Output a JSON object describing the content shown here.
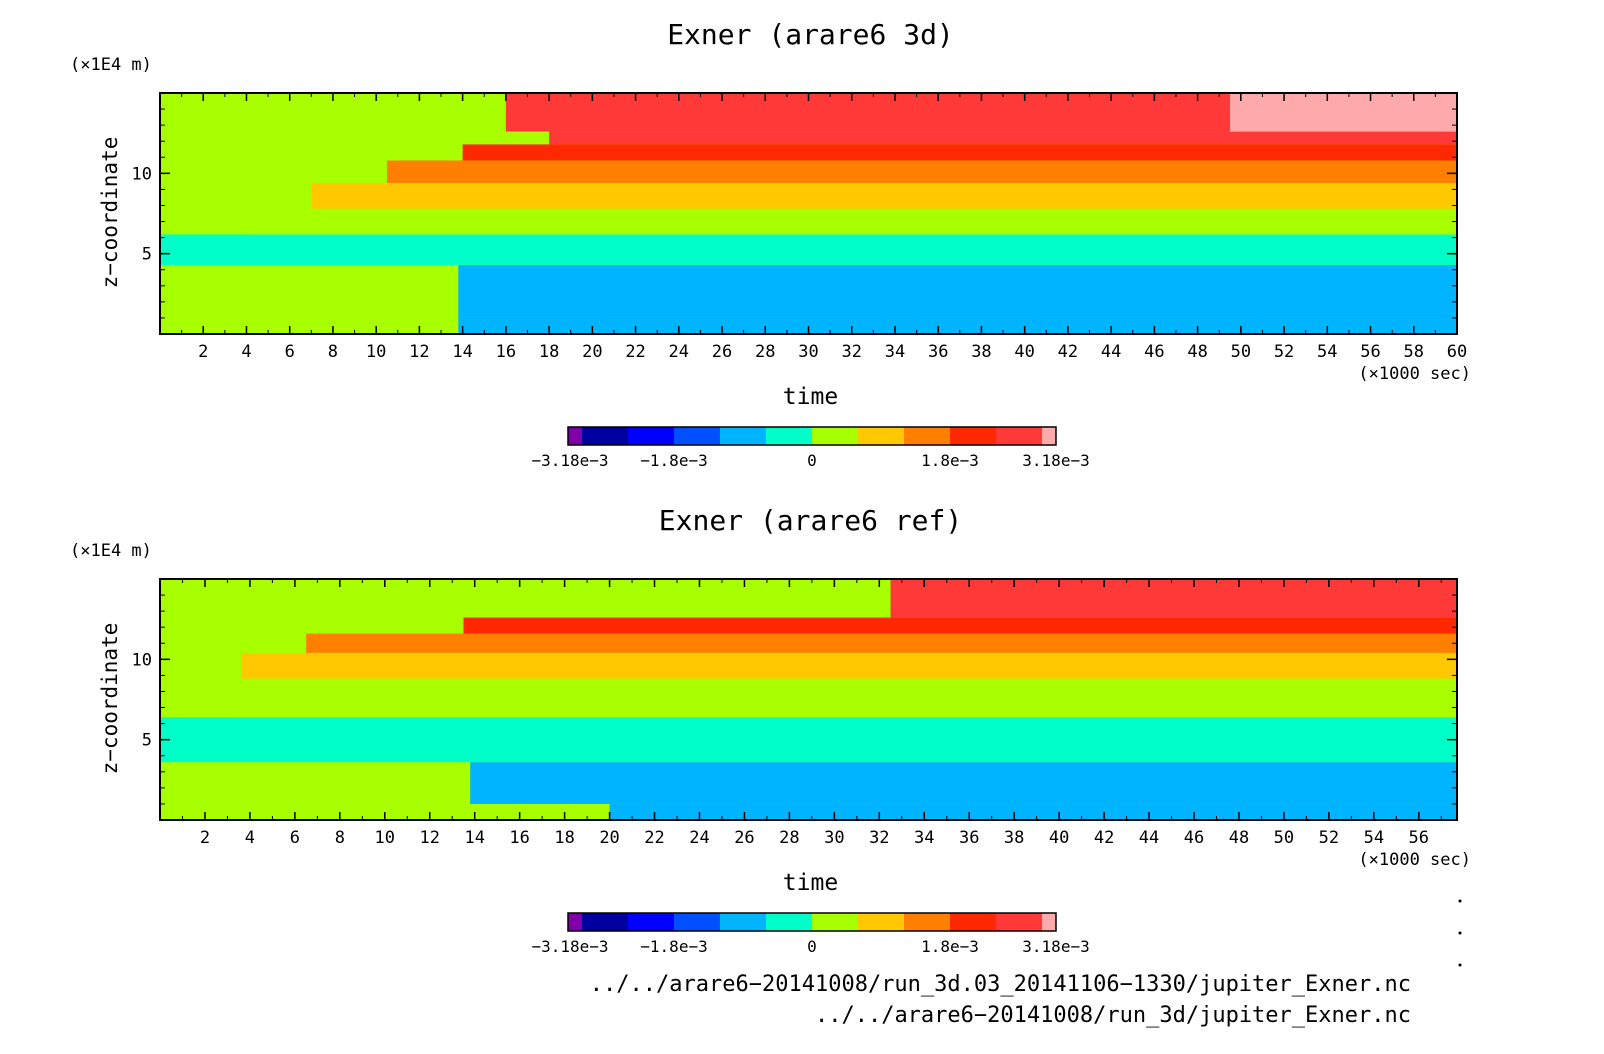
{
  "chart_data": [
    {
      "type": "heatmap",
      "title": "Exner (arare6 3d)",
      "xlabel": "time",
      "xunit": "(×1000 sec)",
      "ylabel": "z−coordinate",
      "yunit": "(×1E4 m)",
      "xlim": [
        0,
        60
      ],
      "ylim": [
        0,
        15
      ],
      "x_ticks": [
        2,
        4,
        6,
        8,
        10,
        12,
        14,
        16,
        18,
        20,
        22,
        24,
        26,
        28,
        30,
        32,
        34,
        36,
        38,
        40,
        42,
        44,
        46,
        48,
        50,
        52,
        54,
        56,
        58,
        60
      ],
      "y_ticks": [
        5,
        10
      ],
      "levels": [
        {
          "z_bottom": 0.0,
          "z_top": 1.3,
          "level": 4,
          "starts_at": 13.8
        },
        {
          "z_bottom": 1.3,
          "z_top": 4.3,
          "level": 4,
          "starts_at": 13.8
        },
        {
          "z_bottom": 4.3,
          "z_top": 6.2,
          "level": 5,
          "starts_at": 0
        },
        {
          "z_bottom": 6.2,
          "z_top": 7.8,
          "level": 6,
          "starts_at": 4.0
        },
        {
          "z_bottom": 7.8,
          "z_top": 9.4,
          "level": 7,
          "starts_at": 7.0
        },
        {
          "z_bottom": 9.4,
          "z_top": 10.8,
          "level": 8,
          "starts_at": 10.5
        },
        {
          "z_bottom": 10.8,
          "z_top": 11.8,
          "level": 9,
          "starts_at": 14.0
        },
        {
          "z_bottom": 11.8,
          "z_top": 12.6,
          "level": 10,
          "starts_at": 18.0
        },
        {
          "z_bottom": 12.6,
          "z_top": 15.0,
          "level": 10,
          "starts_at": 16.0
        },
        {
          "z_bottom": 12.6,
          "z_top": 15.0,
          "level": 11,
          "starts_at": 49.5
        }
      ]
    },
    {
      "type": "heatmap",
      "title": "Exner (arare6 ref)",
      "xlabel": "time",
      "xunit": "(×1000 sec)",
      "ylabel": "z−coordinate",
      "yunit": "(×1E4 m)",
      "xlim": [
        0,
        57.7
      ],
      "ylim": [
        0,
        15
      ],
      "x_ticks": [
        2,
        4,
        6,
        8,
        10,
        12,
        14,
        16,
        18,
        20,
        22,
        24,
        26,
        28,
        30,
        32,
        34,
        36,
        38,
        40,
        42,
        44,
        46,
        48,
        50,
        52,
        54,
        56
      ],
      "y_ticks": [
        5,
        10
      ],
      "levels": [
        {
          "z_bottom": 0.0,
          "z_top": 1.0,
          "level": 4,
          "starts_at": 20.0
        },
        {
          "z_bottom": 1.0,
          "z_top": 3.6,
          "level": 4,
          "starts_at": 13.8
        },
        {
          "z_bottom": 3.6,
          "z_top": 6.4,
          "level": 5,
          "starts_at": 0
        },
        {
          "z_bottom": 6.4,
          "z_top": 8.8,
          "level": 6,
          "starts_at": 3.0
        },
        {
          "z_bottom": 8.8,
          "z_top": 10.4,
          "level": 7,
          "starts_at": 3.6
        },
        {
          "z_bottom": 10.4,
          "z_top": 11.6,
          "level": 8,
          "starts_at": 6.5
        },
        {
          "z_bottom": 11.6,
          "z_top": 12.6,
          "level": 9,
          "starts_at": 13.5
        },
        {
          "z_bottom": 12.6,
          "z_top": 15.0,
          "level": 10,
          "starts_at": 32.5
        }
      ]
    }
  ],
  "colorbar": {
    "colors": [
      "#7f00a8",
      "#0000a0",
      "#0000ff",
      "#0050ff",
      "#00b4ff",
      "#00ffc8",
      "#a8ff00",
      "#ffc800",
      "#ff8000",
      "#ff2800",
      "#ff3838",
      "#ffaaaa"
    ],
    "tick_labels": [
      "−3.18e−3",
      "−1.8e−3",
      "0",
      "1.8e−3",
      "3.18e−3"
    ],
    "base_color": "#a8ff00"
  },
  "footer": {
    "line1": "../../arare6−20141008/run_3d.03_20141106−1330/jupiter_Exner.nc",
    "line2": "../../arare6−20141008/run_3d/jupiter_Exner.nc"
  }
}
